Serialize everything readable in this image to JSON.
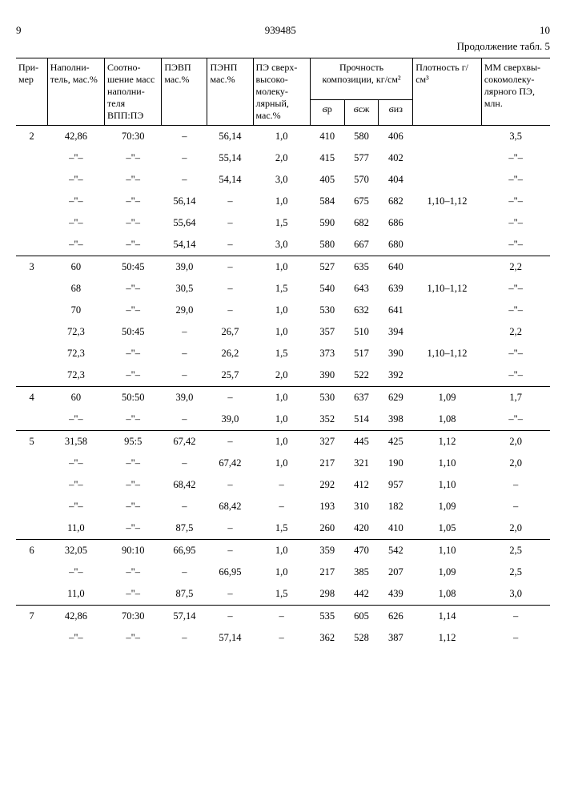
{
  "header": {
    "col_left": "9",
    "doc_number": "939485",
    "col_right": "10",
    "continuation": "Продолжение табл. 5"
  },
  "columns": {
    "c0": "При-\nмер",
    "c1": "Наполни-\nтель,\nмас.%",
    "c2": "Соотно-\nшение\nмасс\nнаполни-\nтеля\nВПП:ПЭ",
    "c3": "ПЭВП\nмас.%",
    "c4": "ПЭНП\nмас.%",
    "c5": "ПЭ\nсверх-\nвысоко-\nмолеку-\nлярный,\nмас.%",
    "c6_top": "Прочность\nкомпозиции,\nкг/см²",
    "c6a": "ϭр",
    "c6b": "ϭсж",
    "c6c": "ϭиз",
    "c7": "Плотность\nг/см³",
    "c8": "ММ\nсверхвы-\nсокомолеку-\nлярного ПЭ,\nмлн."
  },
  "rows": [
    {
      "g": 1,
      "c0": "2",
      "c1": "42,86",
      "c2": "70:30",
      "c3": "–",
      "c4": "56,14",
      "c5": "1,0",
      "p": "410",
      "s": "580",
      "i": "406",
      "d": "",
      "m": "3,5"
    },
    {
      "c0": "",
      "c1": "–\"–",
      "c2": "–\"–",
      "c3": "–",
      "c4": "55,14",
      "c5": "2,0",
      "p": "415",
      "s": "577",
      "i": "402",
      "d": "",
      "m": "–\"–"
    },
    {
      "c0": "",
      "c1": "–\"–",
      "c2": "–\"–",
      "c3": "–",
      "c4": "54,14",
      "c5": "3,0",
      "p": "405",
      "s": "570",
      "i": "404",
      "d": "",
      "m": "–\"–"
    },
    {
      "c0": "",
      "c1": "–\"–",
      "c2": "–\"–",
      "c3": "56,14",
      "c4": "–",
      "c5": "1,0",
      "p": "584",
      "s": "675",
      "i": "682",
      "d": "1,10–1,12",
      "m": "–\"–"
    },
    {
      "c0": "",
      "c1": "–\"–",
      "c2": "–\"–",
      "c3": "55,64",
      "c4": "–",
      "c5": "1,5",
      "p": "590",
      "s": "682",
      "i": "686",
      "d": "",
      "m": "–\"–"
    },
    {
      "c0": "",
      "c1": "–\"–",
      "c2": "–\"–",
      "c3": "54,14",
      "c4": "–",
      "c5": "3,0",
      "p": "580",
      "s": "667",
      "i": "680",
      "d": "",
      "m": "–\"–"
    },
    {
      "g": 1,
      "c0": "3",
      "c1": "60",
      "c2": "50:45",
      "c3": "39,0",
      "c4": "–",
      "c5": "1,0",
      "p": "527",
      "s": "635",
      "i": "640",
      "d": "",
      "m": "2,2"
    },
    {
      "c0": "",
      "c1": "68",
      "c2": "–\"–",
      "c3": "30,5",
      "c4": "–",
      "c5": "1,5",
      "p": "540",
      "s": "643",
      "i": "639",
      "d": "1,10–1,12",
      "m": "–\"–"
    },
    {
      "c0": "",
      "c1": "70",
      "c2": "–\"–",
      "c3": "29,0",
      "c4": "–",
      "c5": "1,0",
      "p": "530",
      "s": "632",
      "i": "641",
      "d": "",
      "m": "–\"–"
    },
    {
      "c0": "",
      "c1": "72,3",
      "c2": "50:45",
      "c3": "–",
      "c4": "26,7",
      "c5": "1,0",
      "p": "357",
      "s": "510",
      "i": "394",
      "d": "",
      "m": "2,2"
    },
    {
      "c0": "",
      "c1": "72,3",
      "c2": "–\"–",
      "c3": "–",
      "c4": "26,2",
      "c5": "1,5",
      "p": "373",
      "s": "517",
      "i": "390",
      "d": "1,10–1,12",
      "m": "–\"–"
    },
    {
      "c0": "",
      "c1": "72,3",
      "c2": "–\"–",
      "c3": "–",
      "c4": "25,7",
      "c5": "2,0",
      "p": "390",
      "s": "522",
      "i": "392",
      "d": "",
      "m": "–\"–"
    },
    {
      "g": 1,
      "c0": "4",
      "c1": "60",
      "c2": "50:50",
      "c3": "39,0",
      "c4": "–",
      "c5": "1,0",
      "p": "530",
      "s": "637",
      "i": "629",
      "d": "1,09",
      "m": "1,7"
    },
    {
      "c0": "",
      "c1": "–\"–",
      "c2": "–\"–",
      "c3": "–",
      "c4": "39,0",
      "c5": "1,0",
      "p": "352",
      "s": "514",
      "i": "398",
      "d": "1,08",
      "m": "–\"–"
    },
    {
      "g": 1,
      "c0": "5",
      "c1": "31,58",
      "c2": "95:5",
      "c3": "67,42",
      "c4": "–",
      "c5": "1,0",
      "p": "327",
      "s": "445",
      "i": "425",
      "d": "1,12",
      "m": "2,0"
    },
    {
      "c0": "",
      "c1": "–\"–",
      "c2": "–\"–",
      "c3": "–",
      "c4": "67,42",
      "c5": "1,0",
      "p": "217",
      "s": "321",
      "i": "190",
      "d": "1,10",
      "m": "2,0"
    },
    {
      "c0": "",
      "c1": "–\"–",
      "c2": "–\"–",
      "c3": "68,42",
      "c4": "–",
      "c5": "–",
      "p": "292",
      "s": "412",
      "i": "957",
      "d": "1,10",
      "m": "–"
    },
    {
      "c0": "",
      "c1": "–\"–",
      "c2": "–\"–",
      "c3": "–",
      "c4": "68,42",
      "c5": "–",
      "p": "193",
      "s": "310",
      "i": "182",
      "d": "1,09",
      "m": "–"
    },
    {
      "c0": "",
      "c1": "11,0",
      "c2": "–\"–",
      "c3": "87,5",
      "c4": "–",
      "c5": "1,5",
      "p": "260",
      "s": "420",
      "i": "410",
      "d": "1,05",
      "m": "2,0"
    },
    {
      "g": 1,
      "c0": "6",
      "c1": "32,05",
      "c2": "90:10",
      "c3": "66,95",
      "c4": "–",
      "c5": "1,0",
      "p": "359",
      "s": "470",
      "i": "542",
      "d": "1,10",
      "m": "2,5"
    },
    {
      "c0": "",
      "c1": "–\"–",
      "c2": "–\"–",
      "c3": "–",
      "c4": "66,95",
      "c5": "1,0",
      "p": "217",
      "s": "385",
      "i": "207",
      "d": "1,09",
      "m": "2,5"
    },
    {
      "c0": "",
      "c1": "11,0",
      "c2": "–\"–",
      "c3": "87,5",
      "c4": "–",
      "c5": "1,5",
      "p": "298",
      "s": "442",
      "i": "439",
      "d": "1,08",
      "m": "3,0"
    },
    {
      "g": 1,
      "c0": "7",
      "c1": "42,86",
      "c2": "70:30",
      "c3": "57,14",
      "c4": "–",
      "c5": "–",
      "p": "535",
      "s": "605",
      "i": "626",
      "d": "1,14",
      "m": "–"
    },
    {
      "c0": "",
      "c1": "–\"–",
      "c2": "–\"–",
      "c3": "–",
      "c4": "57,14",
      "c5": "–",
      "p": "362",
      "s": "528",
      "i": "387",
      "d": "1,12",
      "m": "–"
    }
  ]
}
